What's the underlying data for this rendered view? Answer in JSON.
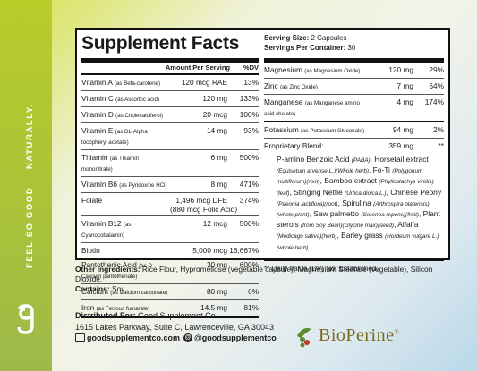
{
  "side": {
    "tagline": "FEEL SO GOOD — NATURALLY."
  },
  "panel": {
    "title": "Supplement Facts",
    "serving_size_label": "Serving Size:",
    "serving_size_value": "2 Capsules",
    "servings_label": "Servings Per Container:",
    "servings_value": "30",
    "col_amount": "Amount Per Serving",
    "col_dv": "%DV",
    "left_rows": [
      {
        "name": "Vitamin A",
        "sub": "(as Beta-carotene)",
        "amount": "120 mcg RAE",
        "dv": "13%"
      },
      {
        "name": "Vitamin C",
        "sub": "(as Ascorbic acid)",
        "amount": "120 mg",
        "dv": "133%"
      },
      {
        "name": "Vitamin D",
        "sub": "(as Cholecalciferol)",
        "amount": "20 mcg",
        "dv": "100%"
      },
      {
        "name": "Vitamin E",
        "sub": "(as DL-Alpha tocopheryl acetate)",
        "amount": "14 mg",
        "dv": "93%"
      },
      {
        "name": "Thiamin",
        "sub": "(as Thiamin mononitrate)",
        "amount": "6 mg",
        "dv": "500%"
      },
      {
        "name": "Vitamin B6",
        "sub": "(as Pyridoxine HCl)",
        "amount": "8 mg",
        "dv": "471%"
      },
      {
        "name": "Folate",
        "sub": "",
        "amount": "1,496 mcg DFE",
        "amount2": "(880 mcg Folic Acid)",
        "dv": "374%"
      },
      {
        "name": "Vitamin B12",
        "sub": "(as Cyanocobalamin)",
        "amount": "12 mcg",
        "dv": "500%"
      },
      {
        "name": "Biotin",
        "sub": "",
        "amount": "5,000 mcg",
        "dv": "16,667%"
      },
      {
        "name": "Pantothenic Acid",
        "sub": "(as D-Calcium pantothenate)",
        "amount": "30 mg",
        "dv": "600%"
      },
      {
        "name": "Calcium",
        "sub": "(as Calcium carbonate)",
        "amount": "80 mg",
        "dv": "6%"
      },
      {
        "name": "Iron",
        "sub": "(as Ferrous fumarate)",
        "amount": "14.5 mg",
        "dv": "81%"
      }
    ],
    "right_rows": [
      {
        "name": "Magnesium",
        "sub": "(as Magnesium Oxide)",
        "amount": "120 mg",
        "dv": "29%"
      },
      {
        "name": "Zinc",
        "sub": "(as Zinc Oxide)",
        "amount": "7 mg",
        "dv": "64%"
      },
      {
        "name": "Manganese",
        "sub": "(as Manganese amino acid chelate)",
        "amount": "4 mg",
        "dv": "174%"
      },
      {
        "name": "Potassium",
        "sub": "(as Potassium Gluconate)",
        "amount": "94 mg",
        "dv": "2%"
      }
    ],
    "blend_name": "Proprietary Blend:",
    "blend_amount": "359 mg",
    "blend_dv": "**",
    "blend_parts": [
      {
        "t": "P-amino Benzoic Acid "
      },
      {
        "i": "(PABA)"
      },
      {
        "t": ", Horsetail extract "
      },
      {
        "i": "(Equisetum arvense L.)(Whole herb)"
      },
      {
        "t": ", Fo-Ti "
      },
      {
        "i": "(Polygonum multiflorum)(root)"
      },
      {
        "t": ", Bamboo extract "
      },
      {
        "i": "(Phyllostachys viridis)(leaf)"
      },
      {
        "t": ", Stinging Nettle "
      },
      {
        "i": "(Urtica dioica L.)"
      },
      {
        "t": ", Chinese Peony "
      },
      {
        "i": "(Paeonia lactiflora)(root)"
      },
      {
        "t": ", Spirulina "
      },
      {
        "i": "(Arthrospira platensis)(whole plant)"
      },
      {
        "t": ", Saw palmetto "
      },
      {
        "i": "(Serenoa repens)(fruit)"
      },
      {
        "t": ", Plant sterols "
      },
      {
        "i": "(from Soy Bean)(Glycine max)(seed)"
      },
      {
        "t": ", Alfalfa "
      },
      {
        "i": "(Medicago sativa)(herb)"
      },
      {
        "t": ", Barley grass "
      },
      {
        "i": "(Hordeum vulgare L.)(whole herb)"
      }
    ],
    "footnote": "** Daily Value (DV) Not Established."
  },
  "ingredients": {
    "other_label": "Other Ingredients:",
    "other_text": "Rice Flour, Hypromellose (vegetable capsule), Magnesium Stearate (vegetable), Silicon Dioxide.",
    "contains_label": "Contains:",
    "contains_text": "Soy"
  },
  "distributor": {
    "label": "Distributed For:",
    "company": "Good Supplement Co.",
    "address": "1615 Lakes Parkway, Suite C, Lawrenceville, GA  30043",
    "website": "goodsupplementco.com",
    "social": "@goodsupplementco"
  },
  "brand": {
    "name": "BioPerine",
    "mark": "®",
    "leaf_color": "#5a8a2a",
    "pepper_color": "#c0392b"
  }
}
